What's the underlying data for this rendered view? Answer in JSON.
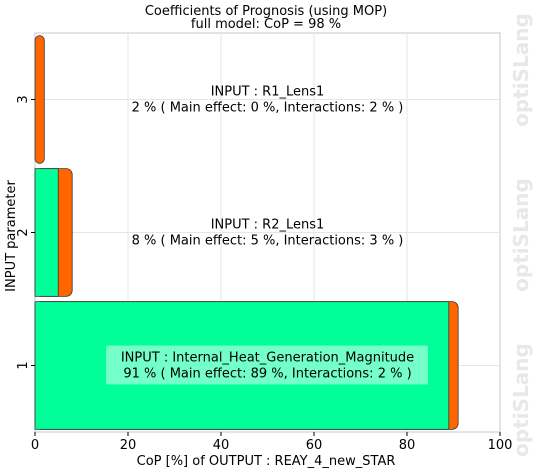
{
  "chart_data": {
    "type": "bar",
    "orientation": "horizontal",
    "stacked": true,
    "title": "Coefficients of Prognosis (using MOP)",
    "subtitle": "full model: CoP = 98 %",
    "xlabel": "CoP [%] of OUTPUT : REAY_4_new_STAR",
    "ylabel": "INPUT parameter",
    "xlim": [
      0,
      100
    ],
    "xticks": [
      0,
      20,
      40,
      60,
      80,
      100
    ],
    "categories": [
      "1",
      "2",
      "3"
    ],
    "series": [
      {
        "name": "Main effect",
        "color": "#00ff99",
        "values": [
          89,
          5,
          0
        ]
      },
      {
        "name": "Interactions",
        "color": "#ff6600",
        "values": [
          2,
          3,
          2
        ]
      }
    ],
    "annotations": [
      {
        "category": "1",
        "line1": "INPUT : Internal_Heat_Generation_Magnitude",
        "line2": "91 % ( Main effect: 89 %, Interactions: 2 % )",
        "highlight": true
      },
      {
        "category": "2",
        "line1": "INPUT : R2_Lens1",
        "line2": "8 % ( Main effect: 5 %, Interactions: 3 % )",
        "highlight": false
      },
      {
        "category": "3",
        "line1": "INPUT : R1_Lens1",
        "line2": "2 % ( Main effect: 0 %, Interactions: 2 % )",
        "highlight": false
      }
    ],
    "grid": true,
    "watermark": "optiSLang"
  }
}
